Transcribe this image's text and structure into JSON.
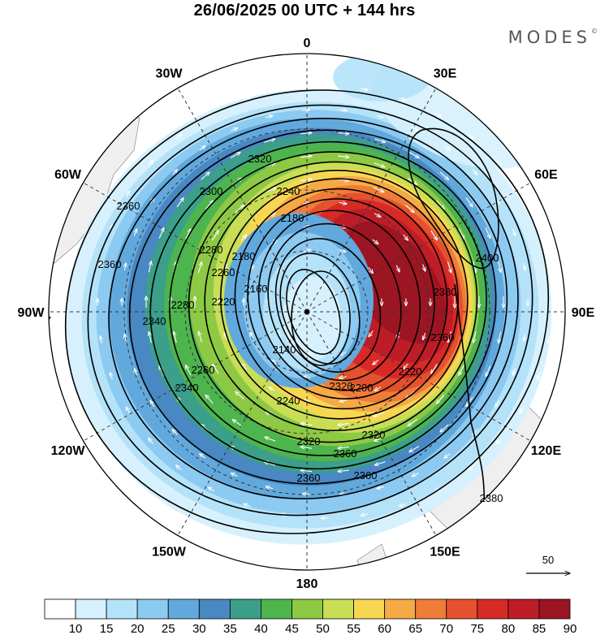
{
  "title": "26/06/2025  00 UTC  + 144 hrs",
  "brand": {
    "name": "MODES",
    "mark": "©"
  },
  "map": {
    "projection": "polar-stereographic-south",
    "longitude_labels": [
      {
        "lon": 0,
        "text": "0"
      },
      {
        "lon": 30,
        "text": "30E"
      },
      {
        "lon": 60,
        "text": "60E"
      },
      {
        "lon": 90,
        "text": "90E"
      },
      {
        "lon": 120,
        "text": "120E"
      },
      {
        "lon": 150,
        "text": "150E"
      },
      {
        "lon": 180,
        "text": "180"
      },
      {
        "lon": -150,
        "text": "150W"
      },
      {
        "lon": -120,
        "text": "120W"
      },
      {
        "lon": -90,
        "text": "90W"
      },
      {
        "lon": -60,
        "text": "60W"
      },
      {
        "lon": -30,
        "text": "30W"
      }
    ],
    "contour_labels": [
      "2400",
      "2380",
      "2380",
      "2360",
      "2360",
      "2360",
      "2360",
      "2360",
      "2360",
      "2340",
      "2340",
      "2320",
      "2320",
      "2320",
      "2320",
      "2300",
      "2280",
      "2280",
      "2260",
      "2260",
      "2240",
      "2240",
      "2220",
      "2220",
      "2200",
      "2180",
      "2180",
      "2160",
      "2140"
    ],
    "vector_reference": "50",
    "colors": {
      "land": "#efefef",
      "ocean": "#ffffff",
      "contour": "#000000",
      "vector": "#ffffff"
    }
  },
  "colorbar": {
    "ticks": [
      "10",
      "15",
      "20",
      "25",
      "30",
      "35",
      "40",
      "45",
      "50",
      "55",
      "60",
      "65",
      "70",
      "75",
      "80",
      "85",
      "90"
    ],
    "colors": [
      "#ffffff",
      "#d6f1fd",
      "#b4e2f9",
      "#8ccaf1",
      "#61a9dd",
      "#4988c2",
      "#3c9f8a",
      "#4eb44d",
      "#8dc944",
      "#c9de55",
      "#f7d752",
      "#f5aa45",
      "#ef7c37",
      "#e5512e",
      "#d72a27",
      "#be1d28",
      "#9c1522"
    ]
  }
}
